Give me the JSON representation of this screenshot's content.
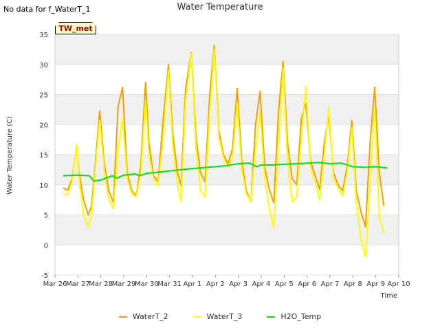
{
  "header": {
    "no_data_note": "No data for f_WaterT_1",
    "badge": "TW_met"
  },
  "colors": {
    "WaterT_2": "#f0a000",
    "WaterT_3": "#ffff00",
    "H2O_Temp": "#00e000",
    "band": "#f0f0f0"
  },
  "chart_data": {
    "type": "line",
    "title": "Water Temperature",
    "xlabel": "Time",
    "ylabel": "Water Temperature (C)",
    "ylim": [
      -5,
      35
    ],
    "xlim": [
      0,
      15
    ],
    "yticks": [
      -5,
      0,
      5,
      10,
      15,
      20,
      25,
      30,
      35
    ],
    "xticks": [
      "Mar 26",
      "Mar 27",
      "Mar 28",
      "Mar 29",
      "Mar 30",
      "Mar 31",
      "Apr 1",
      "Apr 2",
      "Apr 3",
      "Apr 4",
      "Apr 5",
      "Apr 6",
      "Apr 7",
      "Apr 8",
      "Apr 9",
      "Apr 10"
    ],
    "grid": "horizontal bands",
    "legend_position": "bottom",
    "series": [
      {
        "name": "WaterT_2",
        "x": [
          0.35,
          0.55,
          0.75,
          0.95,
          1.05,
          1.25,
          1.45,
          1.6,
          1.75,
          1.95,
          2.15,
          2.35,
          2.55,
          2.75,
          2.95,
          3.15,
          3.35,
          3.55,
          3.75,
          3.95,
          4.1,
          4.3,
          4.5,
          4.7,
          4.95,
          5.15,
          5.35,
          5.5,
          5.7,
          5.95,
          6.15,
          6.35,
          6.55,
          6.75,
          6.95,
          7.15,
          7.35,
          7.55,
          7.75,
          7.95,
          8.15,
          8.35,
          8.55,
          8.75,
          8.95,
          9.15,
          9.35,
          9.55,
          9.75,
          9.95,
          10.15,
          10.35,
          10.55,
          10.75,
          10.95,
          11.15,
          11.35,
          11.55,
          11.75,
          11.95,
          12.15,
          12.35,
          12.55,
          12.75,
          12.95,
          13.15,
          13.35,
          13.55,
          13.75,
          13.95,
          14.15,
          14.35
        ],
        "values": [
          9.5,
          9.1,
          11,
          16.5,
          12,
          7.5,
          5,
          6.5,
          13,
          22.3,
          13.5,
          9,
          7,
          23,
          26.2,
          12,
          9,
          8.2,
          13.5,
          27,
          17,
          11.5,
          10.5,
          20,
          30,
          18,
          12,
          9.8,
          26,
          32,
          18,
          12,
          10.5,
          25,
          33.2,
          19,
          15,
          13.5,
          16,
          26,
          14,
          9,
          7.2,
          20,
          25.5,
          13,
          9.2,
          7,
          22,
          30.5,
          17,
          11,
          10,
          21,
          23.5,
          14,
          11.5,
          9.2,
          17,
          21.5,
          12,
          10,
          9,
          13,
          20.7,
          9,
          5.5,
          3,
          17,
          26.2,
          12,
          6.5
        ]
      },
      {
        "name": "WaterT_3",
        "x": [
          0.35,
          0.55,
          0.75,
          0.95,
          1.05,
          1.25,
          1.45,
          1.6,
          1.75,
          1.95,
          2.15,
          2.35,
          2.55,
          2.75,
          2.95,
          3.15,
          3.35,
          3.55,
          3.75,
          3.95,
          4.1,
          4.3,
          4.5,
          4.7,
          4.95,
          5.15,
          5.35,
          5.5,
          5.7,
          5.95,
          6.15,
          6.35,
          6.55,
          6.75,
          6.95,
          7.15,
          7.35,
          7.55,
          7.75,
          7.95,
          8.15,
          8.35,
          8.55,
          8.75,
          8.95,
          9.15,
          9.35,
          9.55,
          9.75,
          9.95,
          10.15,
          10.35,
          10.55,
          10.75,
          10.95,
          11.15,
          11.35,
          11.55,
          11.75,
          11.95,
          12.15,
          12.35,
          12.55,
          12.75,
          12.95,
          13.15,
          13.35,
          13.55,
          13.75,
          13.95,
          14.15,
          14.35
        ],
        "values": [
          8.5,
          8.3,
          10.5,
          16.7,
          11,
          5,
          3,
          5,
          12,
          20.7,
          12.5,
          7.5,
          6,
          16,
          21,
          11,
          8.5,
          8,
          12,
          24,
          15,
          11,
          9.8,
          17,
          29,
          16,
          10,
          7.2,
          24,
          31.8,
          16,
          9,
          8,
          22,
          32.5,
          18,
          14.5,
          13,
          14.5,
          23.5,
          12.5,
          8.5,
          7.3,
          16,
          22,
          11,
          6,
          3,
          16,
          29.5,
          14,
          7.2,
          8,
          18,
          26.3,
          13,
          10.5,
          7.5,
          15,
          23,
          11,
          9.5,
          8.2,
          12,
          19.5,
          7,
          1,
          -2,
          10,
          22.8,
          5,
          2
        ]
      },
      {
        "name": "H2O_Temp",
        "x": [
          0.35,
          1.0,
          1.5,
          1.7,
          2.0,
          2.5,
          2.7,
          3.0,
          3.5,
          3.7,
          4.0,
          5.0,
          6.0,
          7.0,
          7.5,
          8.0,
          8.5,
          8.8,
          9.0,
          9.5,
          10.0,
          10.5,
          11.0,
          11.5,
          12.0,
          12.5,
          13.0,
          13.5,
          14.0,
          14.5
        ],
        "values": [
          11.5,
          11.6,
          11.5,
          10.6,
          10.8,
          11.5,
          11.1,
          11.6,
          11.8,
          11.5,
          11.9,
          12.3,
          12.7,
          13.0,
          13.2,
          13.5,
          13.6,
          13.0,
          13.3,
          13.3,
          13.4,
          13.5,
          13.6,
          13.7,
          13.5,
          13.6,
          13.0,
          12.9,
          13.0,
          12.8
        ]
      }
    ]
  }
}
